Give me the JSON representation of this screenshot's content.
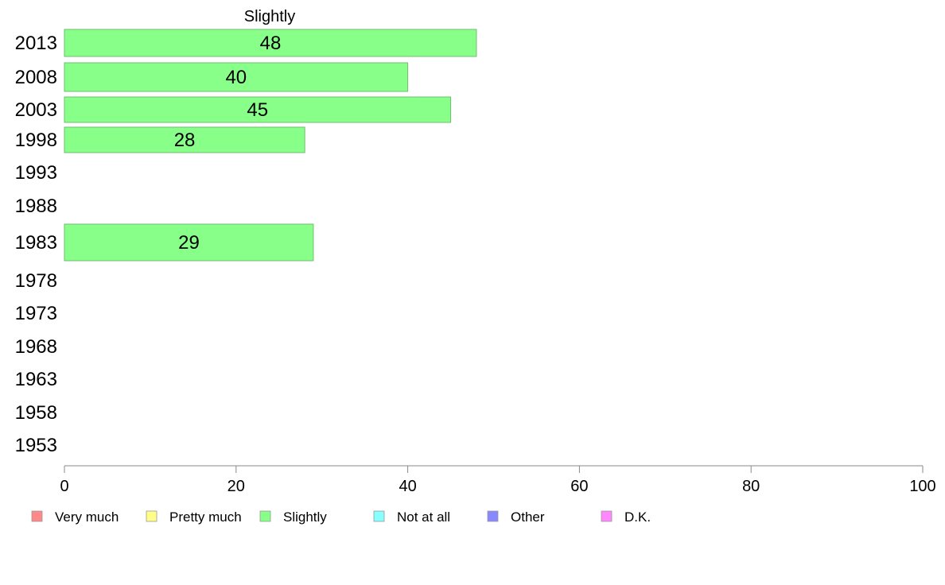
{
  "chart_data": {
    "type": "bar",
    "orientation": "horizontal",
    "title": "Slightly",
    "categories": [
      "2013",
      "2008",
      "2003",
      "1998",
      "1993",
      "1988",
      "1983",
      "1978",
      "1973",
      "1968",
      "1963",
      "1958",
      "1953"
    ],
    "series": [
      {
        "name": "Slightly",
        "color": "#88ff88",
        "values": [
          48,
          40,
          45,
          28,
          null,
          null,
          29,
          null,
          null,
          null,
          null,
          null,
          null
        ],
        "labels": [
          "48",
          "40",
          "45",
          "28",
          "",
          "",
          "29",
          "",
          "",
          "",
          "",
          "",
          ""
        ]
      }
    ],
    "xlim": [
      0,
      100
    ],
    "xticks": [
      0,
      20,
      40,
      60,
      80,
      100
    ],
    "grid": false,
    "legend_position": "bottom",
    "legend": [
      {
        "label": "Very much",
        "color": "#ff8888"
      },
      {
        "label": "Pretty much",
        "color": "#ffff88"
      },
      {
        "label": "Slightly",
        "color": "#88ff88"
      },
      {
        "label": "Not at all",
        "color": "#88ffff"
      },
      {
        "label": "Other",
        "color": "#8888ff"
      },
      {
        "label": "D.K.",
        "color": "#ff88ff"
      }
    ]
  }
}
